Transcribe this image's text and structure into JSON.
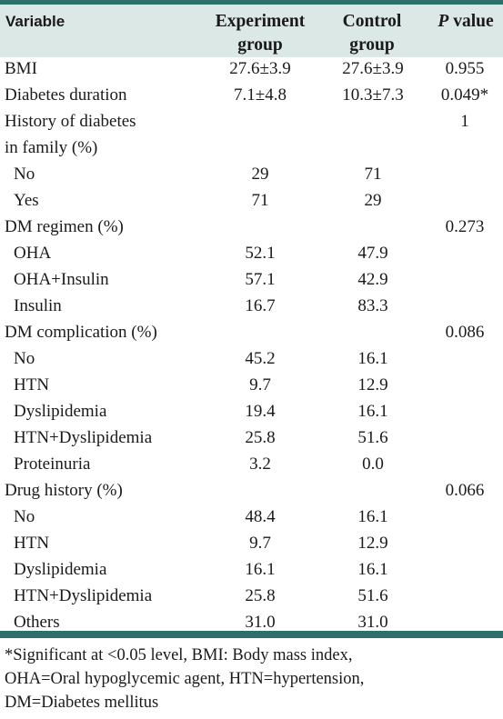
{
  "headers": {
    "variable": "Variable",
    "experiment_line1": "Experiment",
    "experiment_line2": "group",
    "control_line1": "Control",
    "control_line2": "group",
    "p_italic": "P",
    "p_rest": " value"
  },
  "rows": [
    {
      "variable": "BMI",
      "experiment": "27.6±3.9",
      "control": "27.6±3.9",
      "p": "0.955",
      "sub": false
    },
    {
      "variable": "Diabetes duration",
      "experiment": "7.1±4.8",
      "control": "10.3±7.3",
      "p": "0.049*",
      "sub": false
    },
    {
      "variable": "History of diabetes",
      "experiment": "",
      "control": "",
      "p": "1",
      "sub": false
    },
    {
      "variable": "in family (%)",
      "experiment": "",
      "control": "",
      "p": "",
      "sub": false
    },
    {
      "variable": "No",
      "experiment": "29",
      "control": "71",
      "p": "",
      "sub": true
    },
    {
      "variable": "Yes",
      "experiment": "71",
      "control": "29",
      "p": "",
      "sub": true
    },
    {
      "variable": "DM regimen (%)",
      "experiment": "",
      "control": "",
      "p": "0.273",
      "sub": false
    },
    {
      "variable": "OHA",
      "experiment": "52.1",
      "control": "47.9",
      "p": "",
      "sub": true
    },
    {
      "variable": "OHA+Insulin",
      "experiment": "57.1",
      "control": "42.9",
      "p": "",
      "sub": true
    },
    {
      "variable": "Insulin",
      "experiment": "16.7",
      "control": "83.3",
      "p": "",
      "sub": true
    },
    {
      "variable": "DM complication (%)",
      "experiment": "",
      "control": "",
      "p": "0.086",
      "sub": false
    },
    {
      "variable": "No",
      "experiment": "45.2",
      "control": "16.1",
      "p": "",
      "sub": true
    },
    {
      "variable": "HTN",
      "experiment": "9.7",
      "control": "12.9",
      "p": "",
      "sub": true
    },
    {
      "variable": "Dyslipidemia",
      "experiment": "19.4",
      "control": "16.1",
      "p": "",
      "sub": true
    },
    {
      "variable": "HTN+Dyslipidemia",
      "experiment": "25.8",
      "control": "51.6",
      "p": "",
      "sub": true
    },
    {
      "variable": "Proteinuria",
      "experiment": "3.2",
      "control": "0.0",
      "p": "",
      "sub": true
    },
    {
      "variable": "Drug history (%)",
      "experiment": "",
      "control": "",
      "p": "0.066",
      "sub": false
    },
    {
      "variable": "No",
      "experiment": "48.4",
      "control": "16.1",
      "p": "",
      "sub": true
    },
    {
      "variable": "HTN",
      "experiment": "9.7",
      "control": "12.9",
      "p": "",
      "sub": true
    },
    {
      "variable": "Dyslipidemia",
      "experiment": "16.1",
      "control": "16.1",
      "p": "",
      "sub": true
    },
    {
      "variable": "HTN+Dyslipidemia",
      "experiment": "25.8",
      "control": "51.6",
      "p": "",
      "sub": true
    },
    {
      "variable": "Others",
      "experiment": "31.0",
      "control": "31.0",
      "p": "",
      "sub": true
    }
  ],
  "footnote": {
    "line1": "*Significant at <0.05 level, BMI: Body mass index,",
    "line2": "OHA=Oral hypoglycemic agent, HTN=hypertension,",
    "line3": "DM=Diabetes mellitus"
  }
}
